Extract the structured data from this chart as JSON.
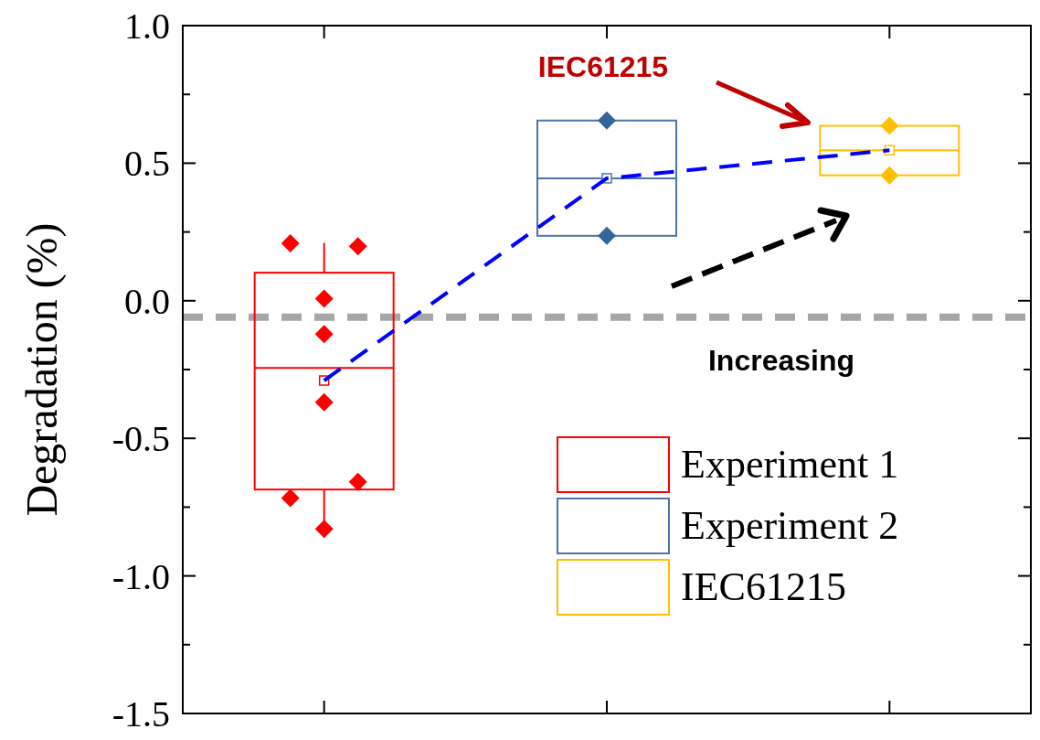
{
  "chart_data": {
    "type": "box",
    "ylabel": "Degradation (%)",
    "categories": [
      null,
      null,
      null
    ],
    "ylim": [
      -1.5,
      1.0
    ],
    "yticks": [
      {
        "value": -1.5,
        "label": "-1.5"
      },
      {
        "value": -1.25,
        "label": null
      },
      {
        "value": -1.0,
        "label": "-1.0"
      },
      {
        "value": -0.75,
        "label": null
      },
      {
        "value": -0.5,
        "label": "-0.5"
      },
      {
        "value": -0.25,
        "label": null
      },
      {
        "value": 0,
        "label": "0.0"
      },
      {
        "value": 0.25,
        "label": null
      },
      {
        "value": 0.5,
        "label": "0.5"
      },
      {
        "value": 0.75,
        "label": null
      },
      {
        "value": 1.0,
        "label": "1.0"
      }
    ],
    "tick_labels": "y",
    "grid": false,
    "legend": "bottom right",
    "series": [
      {
        "name": "Experiment 1",
        "color": "#ff0000",
        "boxes": [
          {
            "low": -0.83,
            "q1": -0.686,
            "median": -0.244,
            "q3": 0.102,
            "high": 0.21,
            "mean": -0.29
          },
          null,
          null
        ]
      },
      {
        "name": "Experiment 2",
        "color": "#4a76a6",
        "boxes": [
          null,
          {
            "low": 0.236,
            "q1": 0.236,
            "median": 0.445,
            "q3": 0.655,
            "high": 0.655,
            "mean": 0.445
          },
          null
        ]
      },
      {
        "name": "IEC61215",
        "color": "#ffc000",
        "boxes": [
          null,
          null,
          {
            "low": 0.456,
            "q1": 0.456,
            "median": 0.547,
            "q3": 0.636,
            "high": 0.636,
            "mean": 0.547
          }
        ]
      },
      {
        "type": "scatter",
        "colors": [
          "#ff0000",
          "#336699",
          "#ffc000"
        ],
        "marker": "diamond",
        "values": [
          0.209,
          0.655,
          0.636
        ]
      },
      {
        "type": "scatter",
        "colors": [
          "#ff0000",
          "#336699",
          "#ffc000"
        ],
        "marker": "diamond",
        "values": [
          0.198,
          0.236,
          0.456
        ]
      },
      {
        "type": "scatter",
        "colors": [
          "#ff0000",
          null,
          null
        ],
        "marker": "diamond",
        "values": [
          0.008,
          null,
          null
        ]
      },
      {
        "type": "scatter",
        "colors": [
          "#ff0000",
          null,
          null
        ],
        "marker": "diamond",
        "values": [
          -0.121,
          null,
          null
        ]
      },
      {
        "type": "scatter",
        "colors": [
          "#ff0000",
          null,
          null
        ],
        "marker": "diamond",
        "values": [
          -0.369,
          null,
          null
        ]
      },
      {
        "type": "scatter",
        "colors": [
          "#ff0000",
          null,
          null
        ],
        "marker": "diamond",
        "values": [
          -0.717,
          null,
          null
        ]
      },
      {
        "type": "scatter",
        "colors": [
          "#ff0000",
          null,
          null
        ],
        "marker": "diamond",
        "values": [
          -0.658,
          null,
          null
        ]
      },
      {
        "type": "scatter",
        "colors": [
          "#ff0000",
          null,
          null
        ],
        "marker": "diamond",
        "values": [
          -0.829,
          null,
          null
        ]
      },
      {
        "type": "line",
        "color": "#0000ff",
        "line_style": "dashed",
        "marker": "none",
        "values": [
          -0.29,
          0.445,
          0.547
        ]
      }
    ],
    "ref_lines": [
      {
        "axis": "y",
        "value": -0.06,
        "color": "#a6a6a6",
        "line_style": "dashed"
      }
    ],
    "annotations": [
      "IEC61215",
      "Increasing"
    ]
  }
}
